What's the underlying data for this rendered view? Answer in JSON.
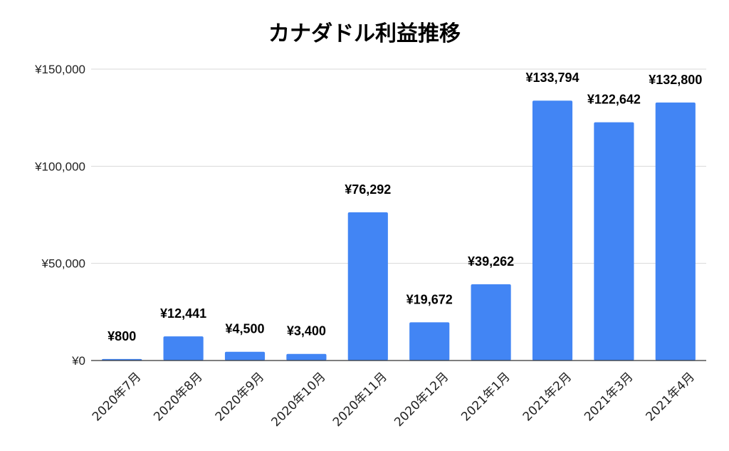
{
  "chart_data": {
    "type": "bar",
    "title": "カナダドル利益推移",
    "categories": [
      "2020年7月",
      "2020年8月",
      "2020年9月",
      "2020年10月",
      "2020年11月",
      "2020年12月",
      "2021年1月",
      "2021年2月",
      "2021年3月",
      "2021年4月"
    ],
    "series": [
      {
        "values": [
          800,
          12441,
          4500,
          3400,
          76292,
          19672,
          39262,
          133794,
          122642,
          132800
        ],
        "data_labels": [
          "¥800",
          "¥12,441",
          "¥4,500",
          "¥3,400",
          "¥76,292",
          "¥19,672",
          "¥39,262",
          "¥133,794",
          "¥122,642",
          "¥132,800"
        ],
        "color": "#4285f4"
      }
    ],
    "ylim": [
      0,
      150000
    ],
    "y_ticks": [
      0,
      50000,
      100000,
      150000
    ],
    "y_tick_labels": [
      "¥0",
      "¥50,000",
      "¥100,000",
      "¥150,000"
    ],
    "xlabel": "",
    "ylabel": "",
    "grid": true,
    "legend": "none",
    "bar_color": "#4285f4",
    "grid_color": "#d9d9d9",
    "axis_color": "#333333"
  }
}
